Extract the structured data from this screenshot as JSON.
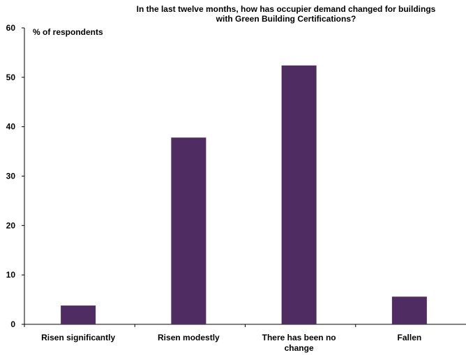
{
  "chart_data": {
    "type": "bar",
    "title": "In the last twelve months, how has occupier demand changed for buildings\nwith Green Building Certifications?",
    "ylabel": "% of respondents",
    "xlabel": "",
    "categories": [
      "Risen significantly",
      "Risen modestly",
      "There has been no change",
      "Fallen"
    ],
    "category_lines": [
      [
        "Risen significantly"
      ],
      [
        "Risen modestly"
      ],
      [
        "There has been no",
        "change"
      ],
      [
        "Fallen"
      ]
    ],
    "values": [
      3.8,
      37.8,
      52.4,
      5.6
    ],
    "ylim": [
      0,
      60
    ],
    "yticks": [
      0,
      10,
      20,
      30,
      40,
      50,
      60
    ],
    "grid": false,
    "legend": "none",
    "colors": {
      "bar": "#4f2d62",
      "axis": "#000000"
    }
  }
}
